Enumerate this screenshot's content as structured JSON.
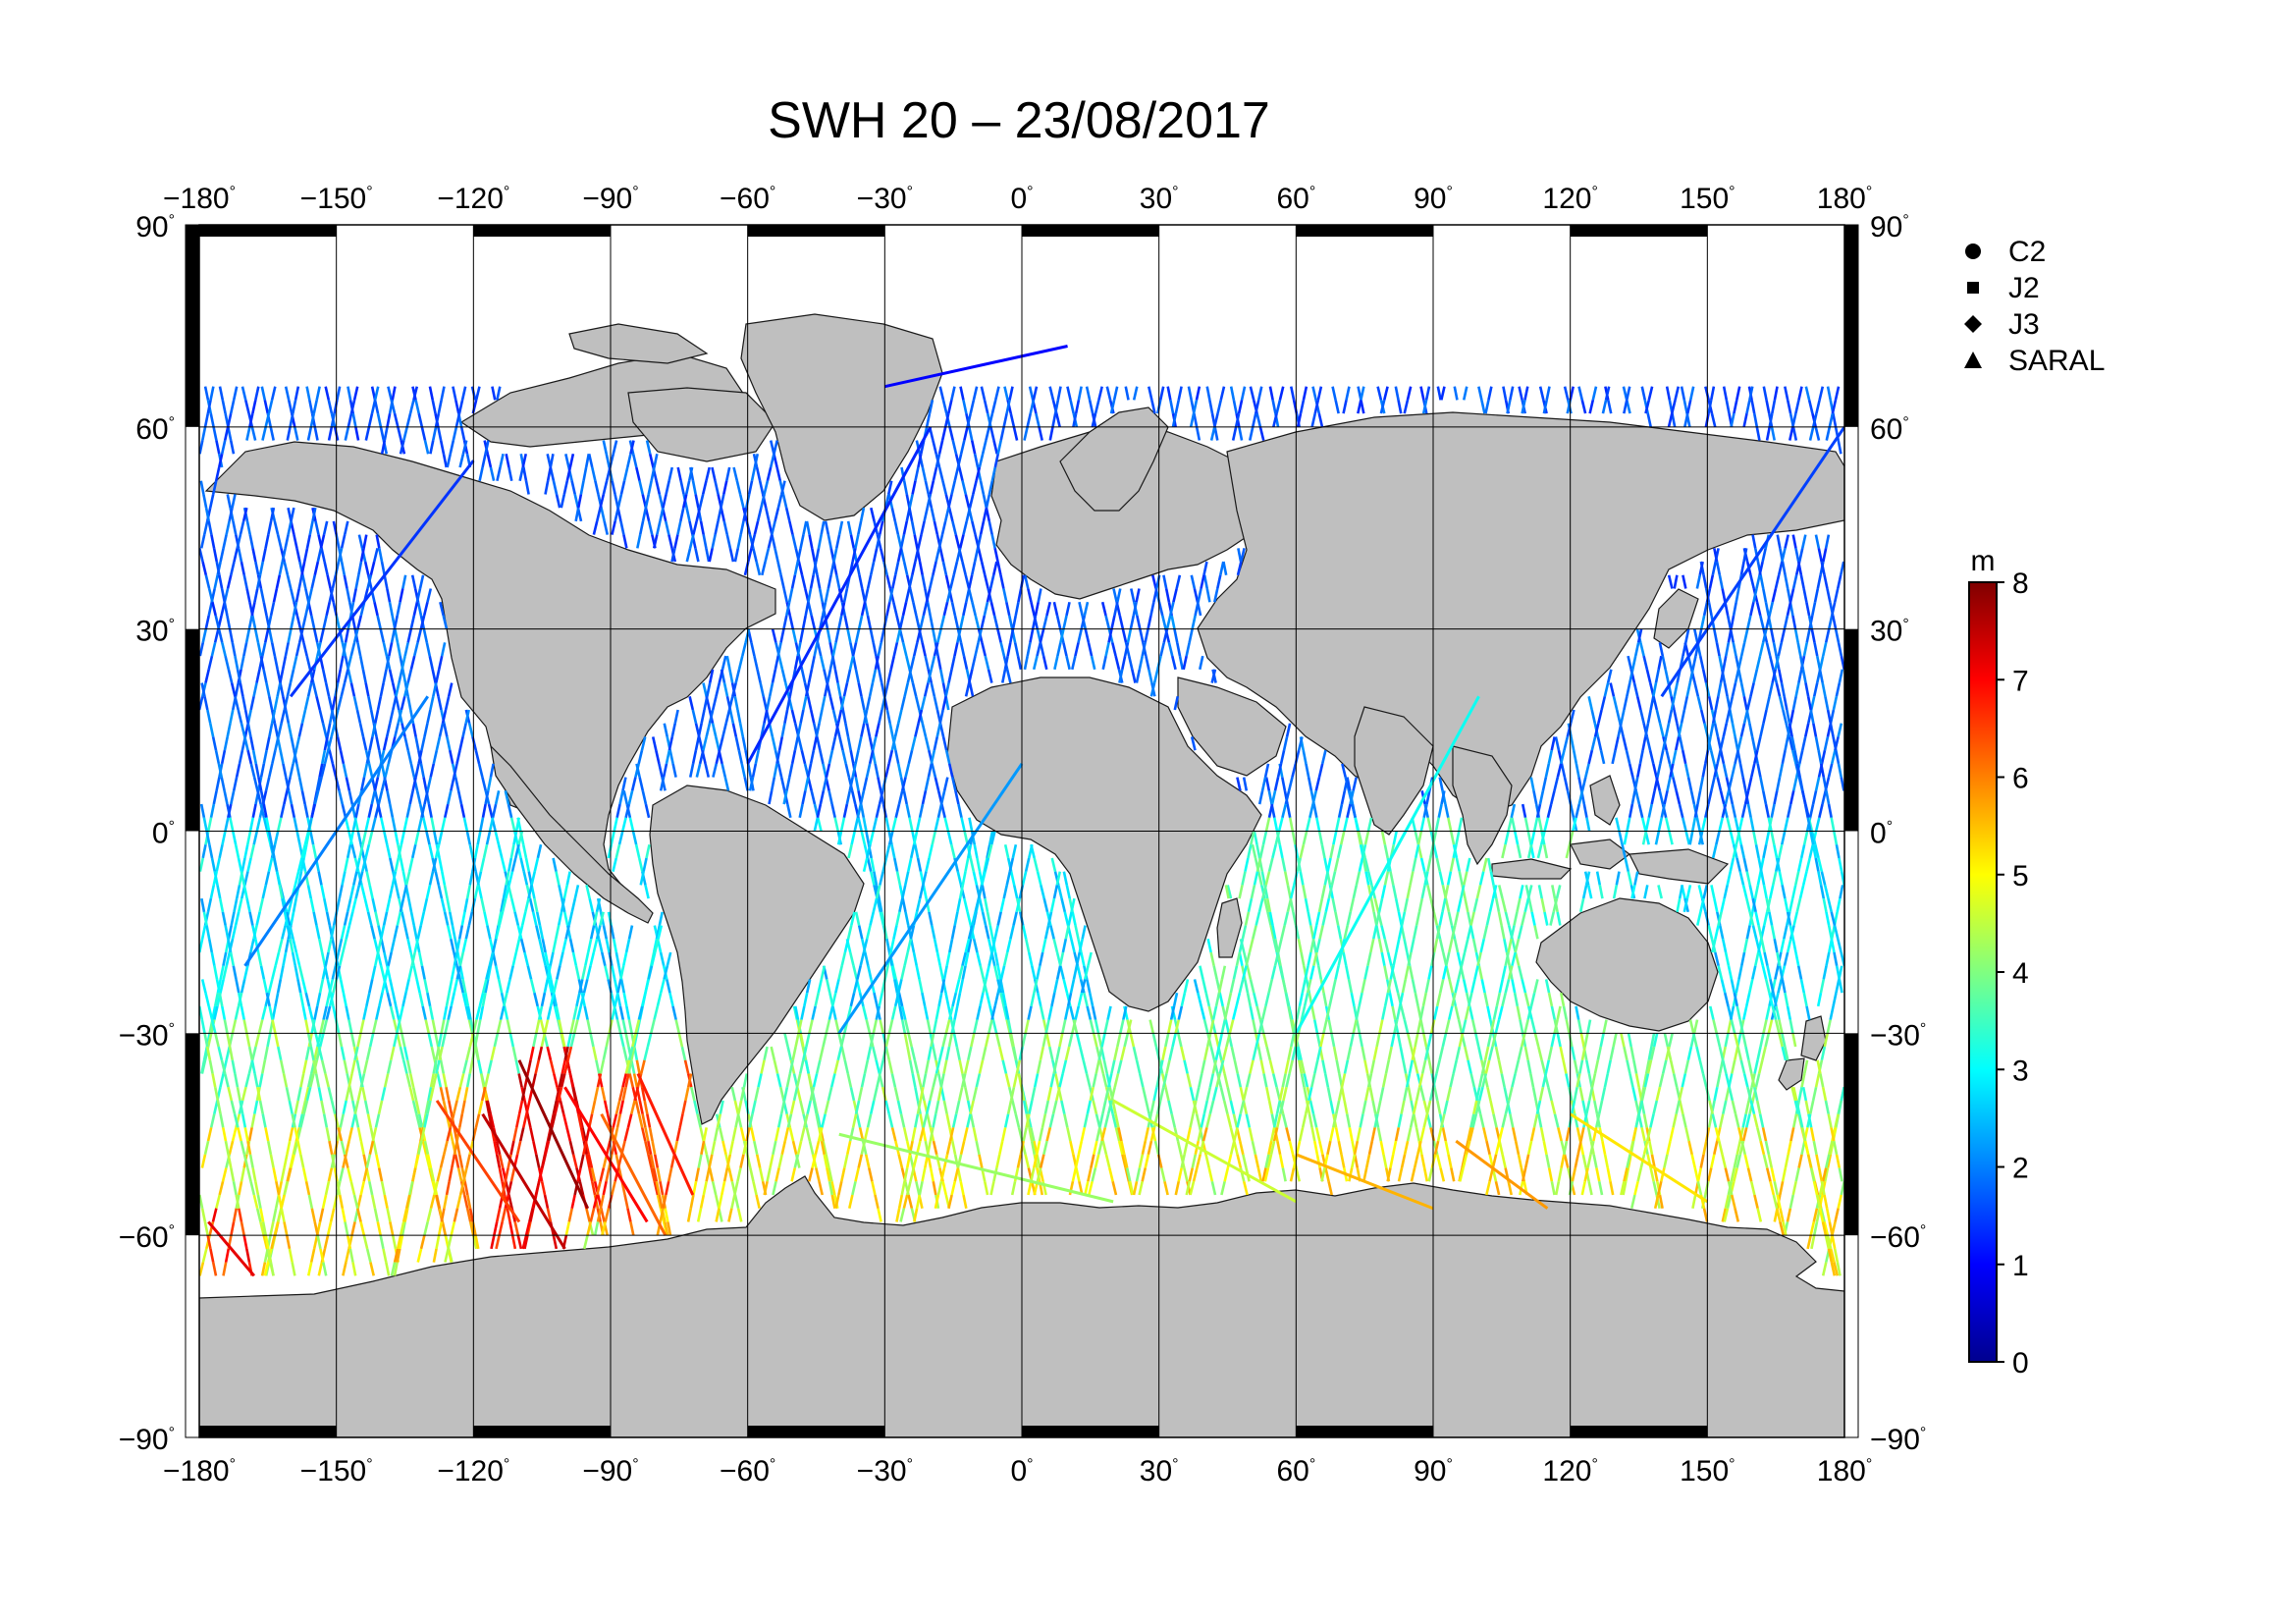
{
  "title": "SWH 20 – 23/08/2017",
  "map": {
    "lon_ticks": [
      -180,
      -150,
      -120,
      -90,
      -60,
      -30,
      0,
      30,
      60,
      90,
      120,
      150,
      180
    ],
    "lat_ticks": [
      90,
      60,
      30,
      0,
      -30,
      -60,
      -90
    ],
    "lon_labels": [
      "−180",
      "−150",
      "−120",
      "−90",
      "−60",
      "−30",
      "0",
      "30",
      "60",
      "90",
      "120",
      "150",
      "180"
    ],
    "lat_labels": [
      "90",
      "60",
      "30",
      "0",
      "−30",
      "−60",
      "−90"
    ],
    "degree_symbol": "°",
    "grid": true,
    "land_color": "#bfbfbf",
    "ocean_color": "#ffffff"
  },
  "legend": {
    "placement": "right",
    "items": [
      {
        "marker": "circle",
        "label": "C2"
      },
      {
        "marker": "square",
        "label": "J2"
      },
      {
        "marker": "diamond",
        "label": "J3"
      },
      {
        "marker": "triangle",
        "label": "SARAL"
      }
    ]
  },
  "colorbar": {
    "unit": "m",
    "min": 0,
    "max": 8,
    "ticks": [
      "0",
      "1",
      "2",
      "3",
      "4",
      "5",
      "6",
      "7",
      "8"
    ],
    "colormap": [
      "#00008f",
      "#0000ff",
      "#0080ff",
      "#00ffff",
      "#80ff80",
      "#ffff00",
      "#ff8000",
      "#ff0000",
      "#800000"
    ]
  },
  "chart_data": {
    "type": "scatter",
    "title": "SWH 20 – 23/08/2017",
    "variable": "SWH",
    "unit": "m",
    "xlim": [
      -180,
      180
    ],
    "ylim": [
      -90,
      90
    ],
    "grid": true,
    "legend_placement": "right",
    "series": [
      {
        "name": "C2"
      },
      {
        "name": "J2"
      },
      {
        "name": "J3"
      },
      {
        "name": "SARAL"
      }
    ],
    "swh_by_latitude_band": [
      {
        "band": [
          30,
          66
        ],
        "swh": 1.5
      },
      {
        "band": [
          0,
          30
        ],
        "swh": 1.6
      },
      {
        "band": [
          -30,
          0
        ],
        "swh": 2.6
      },
      {
        "band": [
          -45,
          -30
        ],
        "swh": 3.8
      },
      {
        "band": [
          -66,
          -45
        ],
        "swh": 4.8
      }
    ],
    "track_segments": [
      {
        "lon": [
          -178,
          -168
        ],
        "lat": [
          -58,
          -66
        ],
        "swh": 7.2
      },
      {
        "lon": [
          -128,
          -110
        ],
        "lat": [
          -40,
          -58
        ],
        "swh": 6.5
      },
      {
        "lon": [
          -118,
          -100
        ],
        "lat": [
          -42,
          -62
        ],
        "swh": 7.5
      },
      {
        "lon": [
          -110,
          -95
        ],
        "lat": [
          -34,
          -56
        ],
        "swh": 7.8
      },
      {
        "lon": [
          -100,
          -82
        ],
        "lat": [
          -38,
          -58
        ],
        "swh": 7.0
      },
      {
        "lon": [
          -92,
          -78
        ],
        "lat": [
          -42,
          -60
        ],
        "swh": 6.2
      },
      {
        "lon": [
          -84,
          -72
        ],
        "lat": [
          -36,
          -54
        ],
        "swh": 6.8
      },
      {
        "lon": [
          60,
          90
        ],
        "lat": [
          -48,
          -56
        ],
        "swh": 5.6
      },
      {
        "lon": [
          95,
          115
        ],
        "lat": [
          -46,
          -56
        ],
        "swh": 5.8
      },
      {
        "lon": [
          120,
          150
        ],
        "lat": [
          -42,
          -55
        ],
        "swh": 5.2
      },
      {
        "lon": [
          -40,
          20
        ],
        "lat": [
          -45,
          -55
        ],
        "swh": 4.2
      },
      {
        "lon": [
          20,
          60
        ],
        "lat": [
          -40,
          -55
        ],
        "swh": 4.6
      },
      {
        "lon": [
          -170,
          -130
        ],
        "lat": [
          -20,
          20
        ],
        "swh": 2.0
      },
      {
        "lon": [
          -160,
          -120
        ],
        "lat": [
          20,
          55
        ],
        "swh": 1.4
      },
      {
        "lon": [
          -60,
          -20
        ],
        "lat": [
          10,
          60
        ],
        "swh": 1.3
      },
      {
        "lon": [
          -40,
          0
        ],
        "lat": [
          -30,
          10
        ],
        "swh": 2.2
      },
      {
        "lon": [
          60,
          100
        ],
        "lat": [
          -30,
          20
        ],
        "swh": 3.1
      },
      {
        "lon": [
          140,
          180
        ],
        "lat": [
          20,
          60
        ],
        "swh": 1.5
      },
      {
        "lon": [
          -30,
          10
        ],
        "lat": [
          66,
          72
        ],
        "swh": 1.0
      }
    ]
  }
}
